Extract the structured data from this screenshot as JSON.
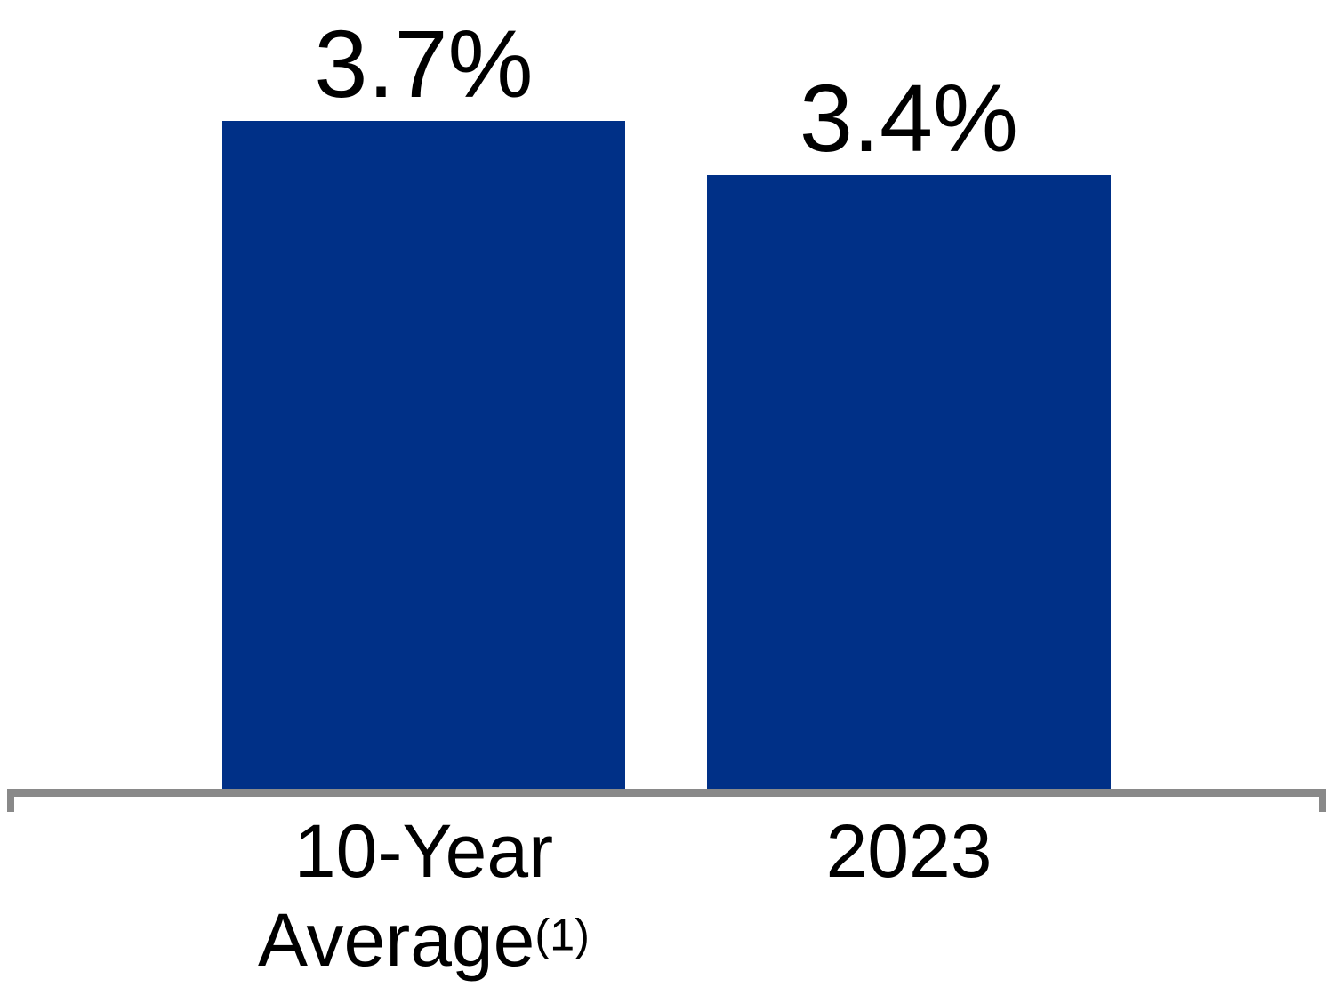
{
  "chart_data": {
    "type": "bar",
    "title": "",
    "categories": [
      "10-Year Average(1)",
      "2023"
    ],
    "values": [
      3.7,
      3.4
    ],
    "value_labels": [
      "3.7%",
      "3.4%"
    ],
    "unit": "%",
    "ylim": [
      0,
      4.4
    ],
    "grid": false,
    "legend_position": "none",
    "bar_color": "#003087",
    "axis_color": "#898989",
    "text_color": "#000000",
    "background_color": "#FFFFFF",
    "footnote_marker": "(1)"
  },
  "bars": [
    {
      "value_label": "3.7%",
      "label_line1": "10-Year",
      "label_line2": "Average",
      "superscript": "(1)"
    },
    {
      "value_label": "3.4%",
      "label_line1": "2023",
      "label_line2": "",
      "superscript": ""
    }
  ]
}
